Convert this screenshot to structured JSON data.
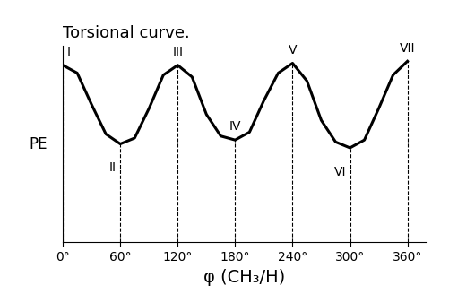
{
  "chart_data": {
    "type": "line",
    "title": "Torsional curve.",
    "x_label": "φ (CH₃/H)",
    "y_label": "PE",
    "x": [
      0,
      15,
      30,
      45,
      60,
      75,
      90,
      105,
      120,
      135,
      150,
      165,
      180,
      195,
      210,
      225,
      240,
      255,
      270,
      285,
      300,
      315,
      330,
      345,
      360
    ],
    "values": [
      9,
      8.6,
      7,
      5.5,
      5,
      5.3,
      6.8,
      8.5,
      9,
      8.4,
      6.5,
      5.4,
      5.2,
      5.6,
      7.2,
      8.6,
      9.1,
      8.2,
      6.2,
      5.1,
      4.8,
      5.2,
      6.8,
      8.5,
      9.2
    ],
    "color": "#000000",
    "xlim": [
      0,
      380
    ],
    "ylim": [
      0,
      10
    ],
    "xticks": [
      {
        "value": 0,
        "label": "0°"
      },
      {
        "value": 60,
        "label": "60°"
      },
      {
        "value": 120,
        "label": "120°"
      },
      {
        "value": 180,
        "label": "180°"
      },
      {
        "value": 240,
        "label": "240°"
      },
      {
        "value": 300,
        "label": "300°"
      },
      {
        "value": 360,
        "label": "360°"
      }
    ],
    "yticks": [],
    "tick_labels": "x",
    "annotations": [
      {
        "label": "I",
        "x": 0,
        "y": 9
      },
      {
        "label": "II",
        "x": 60,
        "y": 5
      },
      {
        "label": "III",
        "x": 120,
        "y": 9
      },
      {
        "label": "IV",
        "x": 180,
        "y": 5.2
      },
      {
        "label": "V",
        "x": 240,
        "y": 9.1
      },
      {
        "label": "VI",
        "x": 300,
        "y": 4.8
      },
      {
        "label": "VII",
        "x": 360,
        "y": 9.2
      }
    ]
  }
}
